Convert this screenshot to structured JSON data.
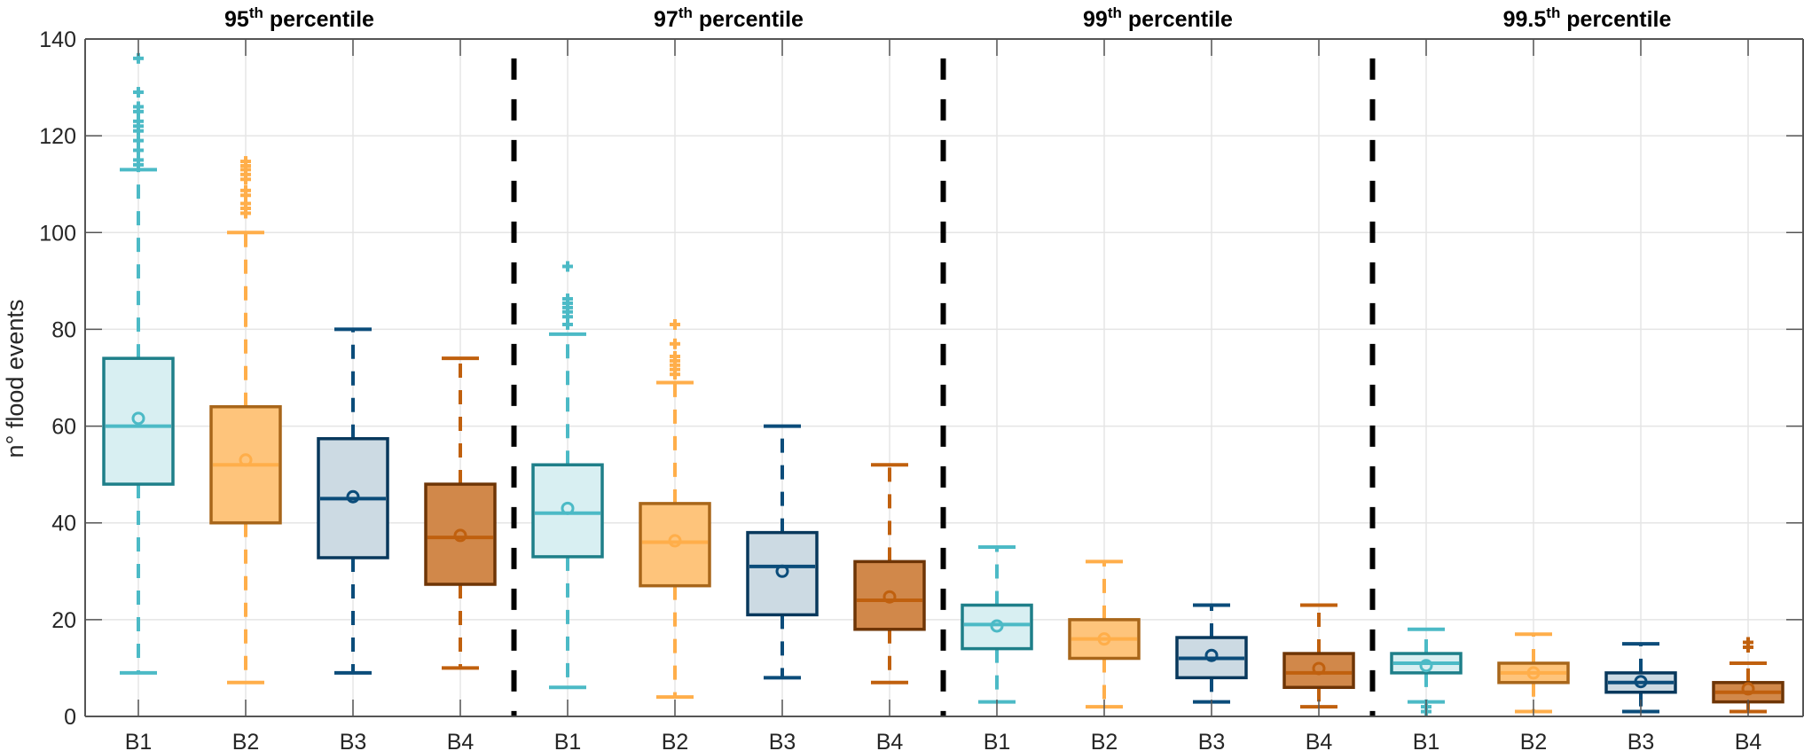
{
  "chart_data": {
    "type": "box",
    "ylabel": "n° flood events",
    "xlabel": "",
    "ylim": [
      0,
      140
    ],
    "yticks": [
      0,
      20,
      40,
      60,
      80,
      100,
      120,
      140
    ],
    "grid": true,
    "categories": [
      "B1",
      "B2",
      "B3",
      "B4"
    ],
    "colors": {
      "B1": {
        "line": "#4CBAC6",
        "fill": "#D8EFF2",
        "edge": "#1E7F89"
      },
      "B2": {
        "line": "#FFAE4A",
        "fill": "#FEC47B",
        "edge": "#A8661A"
      },
      "B3": {
        "line": "#0B4C7A",
        "fill": "#CCDAE3",
        "edge": "#08385C"
      },
      "B4": {
        "line": "#C0600E",
        "fill": "#D1884A",
        "edge": "#6E3506"
      }
    },
    "divider_color": "#000000",
    "groups": [
      {
        "title_num": "95",
        "title_sup": "th",
        "title_rest": " percentile",
        "boxes": [
          {
            "name": "B1",
            "whisker_low": 9,
            "q1": 48,
            "median": 60,
            "q3": 74,
            "whisker_high": 113,
            "mean": 61.6,
            "outliers": [
              114,
              115,
              117,
              119,
              121,
              122,
              123,
              125,
              126,
              129,
              136
            ]
          },
          {
            "name": "B2",
            "whisker_low": 7,
            "q1": 40,
            "median": 52,
            "q3": 64,
            "whisker_high": 100,
            "mean": 53,
            "outliers": [
              104,
              105,
              106,
              107.7,
              108.7,
              111,
              112,
              113,
              113.8,
              114.7
            ]
          },
          {
            "name": "B3",
            "whisker_low": 9,
            "q1": 32.8,
            "median": 45,
            "q3": 57.4,
            "whisker_high": 80,
            "mean": 45.4,
            "outliers": []
          },
          {
            "name": "B4",
            "whisker_low": 10,
            "q1": 27.3,
            "median": 37,
            "q3": 48,
            "whisker_high": 74,
            "mean": 37.4,
            "outliers": []
          }
        ]
      },
      {
        "title_num": "97",
        "title_sup": "th",
        "title_rest": " percentile",
        "boxes": [
          {
            "name": "B1",
            "whisker_low": 6,
            "q1": 33,
            "median": 42,
            "q3": 52,
            "whisker_high": 79,
            "mean": 43,
            "outliers": [
              81,
              82.6,
              83.6,
              84.5,
              85.4,
              86.3,
              93
            ]
          },
          {
            "name": "B2",
            "whisker_low": 4,
            "q1": 27,
            "median": 36,
            "q3": 44,
            "whisker_high": 69,
            "mean": 36.3,
            "outliers": [
              70.7,
              71.7,
              72.6,
              73.5,
              74.4,
              77,
              81
            ]
          },
          {
            "name": "B3",
            "whisker_low": 8,
            "q1": 21,
            "median": 31,
            "q3": 38,
            "whisker_high": 60,
            "mean": 30,
            "outliers": []
          },
          {
            "name": "B4",
            "whisker_low": 7,
            "q1": 18,
            "median": 24,
            "q3": 32,
            "whisker_high": 52,
            "mean": 24.7,
            "outliers": []
          }
        ]
      },
      {
        "title_num": "99",
        "title_sup": "th",
        "title_rest": " percentile",
        "boxes": [
          {
            "name": "B1",
            "whisker_low": 3,
            "q1": 14,
            "median": 19,
            "q3": 23,
            "whisker_high": 35,
            "mean": 18.7,
            "outliers": []
          },
          {
            "name": "B2",
            "whisker_low": 2,
            "q1": 12,
            "median": 16,
            "q3": 20,
            "whisker_high": 32,
            "mean": 16,
            "outliers": []
          },
          {
            "name": "B3",
            "whisker_low": 3,
            "q1": 8,
            "median": 12,
            "q3": 16.3,
            "whisker_high": 23,
            "mean": 12.6,
            "outliers": []
          },
          {
            "name": "B4",
            "whisker_low": 2,
            "q1": 6,
            "median": 9,
            "q3": 13,
            "whisker_high": 23,
            "mean": 9.9,
            "outliers": []
          }
        ]
      },
      {
        "title_num": "99.5",
        "title_sup": "th",
        "title_rest": " percentile",
        "boxes": [
          {
            "name": "B1",
            "whisker_low": 3,
            "q1": 9,
            "median": 11,
            "q3": 13,
            "whisker_high": 18,
            "mean": 10.5,
            "outliers": [
              1,
              2
            ]
          },
          {
            "name": "B2",
            "whisker_low": 1,
            "q1": 7,
            "median": 9,
            "q3": 11,
            "whisker_high": 17,
            "mean": 9,
            "outliers": []
          },
          {
            "name": "B3",
            "whisker_low": 1,
            "q1": 5,
            "median": 7,
            "q3": 9,
            "whisker_high": 15,
            "mean": 7.2,
            "outliers": []
          },
          {
            "name": "B4",
            "whisker_low": 1,
            "q1": 3,
            "median": 5,
            "q3": 7,
            "whisker_high": 11,
            "mean": 5.7,
            "outliers": [
              14.3,
              15.3
            ]
          }
        ]
      }
    ],
    "divider_top_value": 136
  }
}
